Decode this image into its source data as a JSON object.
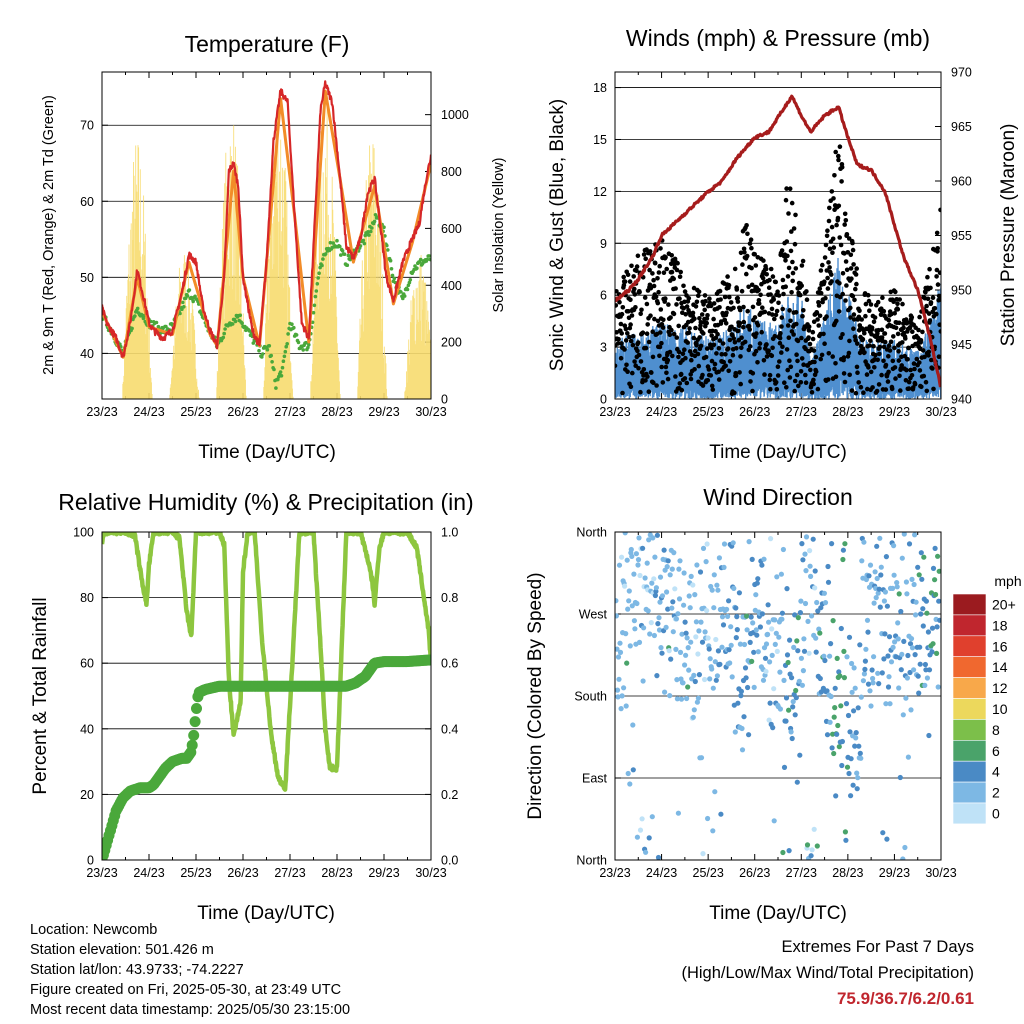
{
  "panels": {
    "temperature": {
      "title": "Temperature (F)",
      "xlabel": "Time (Day/UTC)",
      "ylabel_left": "2m & 9m T (Red, Orange) & 2m Td (Green)",
      "ylabel_right": "Solar Insolation (Yellow)"
    },
    "winds": {
      "title": "Winds (mph) & Pressure (mb)",
      "xlabel": "Time (Day/UTC)",
      "ylabel_left": "Sonic Wind & Gust (Blue, Black)",
      "ylabel_right": "Station Pressure (Maroon)"
    },
    "humidity": {
      "title": "Relative Humidity (%) & Precipitation (in)",
      "xlabel": "Time (Day/UTC)",
      "ylabel_left": "Percent & Total Rainfall"
    },
    "direction": {
      "title": "Wind Direction",
      "xlabel": "Time (Day/UTC)",
      "ylabel_left": "Direction (Colored By Speed)",
      "legend_title": "mph"
    }
  },
  "footer": {
    "location": "Location: Newcomb",
    "elevation": "Station elevation: 501.426 m",
    "latlon": "Station lat/lon: 43.9733; -74.2227",
    "created": "Figure created on Fri, 2025-05-30, at 23:49 UTC",
    "recent": "Most recent data timestamp: 2025/05/30 23:15:00",
    "extremes_title": "Extremes For Past 7 Days",
    "extremes_sub": "(High/Low/Max Wind/Total Precipitation)",
    "extremes_values": "75.9/36.7/6.2/0.61"
  },
  "chart_data": [
    {
      "type": "line",
      "title": "Temperature (F)",
      "xlabel": "Time (Day/UTC)",
      "ylabel": "2m & 9m T (Red, Orange) & 2m Td (Green)",
      "y2label": "Solar Insolation (Yellow)",
      "x_ticks": [
        "23/23",
        "24/23",
        "25/23",
        "26/23",
        "27/23",
        "28/23",
        "29/23",
        "30/23"
      ],
      "xlim": [
        0,
        7
      ],
      "ylim": [
        34,
        77
      ],
      "y_ticks": [
        40,
        50,
        60,
        70
      ],
      "y2lim": [
        0,
        1150
      ],
      "y2_ticks": [
        0,
        200,
        400,
        600,
        800,
        1000
      ],
      "grid": true,
      "colors": {
        "t2m": "#d62728",
        "t9m": "#f28c28",
        "td": "#4aa83b",
        "solar": "#f7dc6f"
      },
      "series": [
        {
          "name": "2m T",
          "color": "#d62728",
          "x": [
            0,
            0.1,
            0.3,
            0.45,
            0.6,
            0.75,
            0.9,
            1.0,
            1.1,
            1.3,
            1.5,
            1.7,
            1.85,
            2.0,
            2.15,
            2.3,
            2.45,
            2.6,
            2.7,
            2.8,
            2.9,
            3.0,
            3.2,
            3.35,
            3.5,
            3.65,
            3.8,
            3.95,
            4.1,
            4.25,
            4.4,
            4.55,
            4.65,
            4.75,
            4.9,
            5.05,
            5.2,
            5.35,
            5.5,
            5.65,
            5.8,
            5.9,
            6.05,
            6.2,
            6.4,
            6.6,
            6.75,
            6.9,
            7.0
          ],
          "y": [
            46,
            44,
            42,
            39.5,
            44,
            51,
            47,
            44,
            43,
            42,
            43,
            48,
            53,
            52,
            46,
            43,
            41,
            50,
            64,
            65,
            62,
            50,
            43,
            41,
            52,
            68,
            74.5,
            73,
            58,
            44,
            42,
            60,
            72,
            75.5,
            73,
            64,
            54,
            52.5,
            55,
            61,
            63,
            58,
            50,
            47,
            52,
            55,
            57,
            63,
            66
          ]
        },
        {
          "name": "9m T",
          "color": "#f28c28",
          "x": [
            0,
            0.3,
            0.45,
            0.75,
            1.0,
            1.5,
            1.85,
            2.3,
            2.45,
            2.8,
            3.0,
            3.35,
            3.8,
            4.1,
            4.4,
            4.75,
            5.05,
            5.35,
            5.8,
            6.2,
            6.6,
            7.0
          ],
          "y": [
            45.5,
            41.5,
            39.5,
            50,
            43.5,
            42.5,
            52,
            42.5,
            41,
            64,
            50,
            41,
            73.5,
            58,
            41.5,
            74.5,
            63.5,
            52,
            62,
            46.5,
            54.5,
            65
          ]
        },
        {
          "name": "2m Td",
          "color": "#4aa83b",
          "x": [
            0,
            0.2,
            0.45,
            0.75,
            1.0,
            1.3,
            1.5,
            1.7,
            1.85,
            2.0,
            2.2,
            2.45,
            2.7,
            2.9,
            3.0,
            3.2,
            3.4,
            3.55,
            3.7,
            3.85,
            4.0,
            4.2,
            4.4,
            4.6,
            4.8,
            5.0,
            5.2,
            5.4,
            5.6,
            5.85,
            6.0,
            6.2,
            6.4,
            6.6,
            6.8,
            7.0
          ],
          "y": [
            45,
            43,
            40,
            46,
            44,
            43,
            43.5,
            46,
            48,
            47,
            44,
            41,
            44,
            45,
            44,
            42,
            40,
            41,
            36,
            38,
            44,
            41,
            41,
            50,
            54,
            54.5,
            52,
            53.5,
            55,
            58,
            56,
            50,
            47,
            51,
            52,
            52.5
          ]
        },
        {
          "name": "Solar Insolation",
          "color": "#f7dc6f",
          "axis": "right",
          "peaks_x": [
            0.75,
            1.75,
            2.75,
            3.75,
            4.75,
            5.75,
            6.75
          ],
          "peaks_y": [
            950,
            550,
            1050,
            1150,
            1100,
            980,
            550
          ]
        }
      ]
    },
    {
      "type": "scatter",
      "title": "Winds (mph) & Pressure (mb)",
      "xlabel": "Time (Day/UTC)",
      "ylabel": "Sonic Wind & Gust (Blue, Black)",
      "y2label": "Station Pressure (Maroon)",
      "x_ticks": [
        "23/23",
        "24/23",
        "25/23",
        "26/23",
        "27/23",
        "28/23",
        "29/23",
        "30/23"
      ],
      "xlim": [
        0,
        7
      ],
      "ylim": [
        0,
        18.9
      ],
      "y_ticks": [
        0,
        3,
        6,
        9,
        12,
        15,
        18
      ],
      "y2lim": [
        940,
        970
      ],
      "y2_ticks": [
        940,
        945,
        950,
        955,
        960,
        965,
        970
      ],
      "grid": true,
      "series": [
        {
          "name": "Station Pressure",
          "color": "#a61c1c",
          "axis": "right",
          "x": [
            0,
            0.3,
            0.5,
            0.8,
            1.0,
            1.5,
            2.0,
            2.3,
            2.6,
            3.0,
            3.3,
            3.6,
            3.8,
            4.0,
            4.2,
            4.5,
            4.8,
            5.0,
            5.2,
            5.5,
            5.8,
            6.0,
            6.2,
            6.5,
            6.8,
            7.0
          ],
          "y": [
            949,
            950,
            951,
            953,
            955,
            957,
            959,
            960,
            962,
            964,
            964.5,
            966.5,
            967.8,
            966,
            964.5,
            966,
            966.8,
            964,
            961.5,
            961,
            959,
            956,
            953,
            950,
            945,
            941
          ]
        },
        {
          "name": "Sonic Wind",
          "color": "#4f8fcf",
          "envelope_x": [
            0,
            0.5,
            1.0,
            1.5,
            2.0,
            2.5,
            2.8,
            3.0,
            3.5,
            3.7,
            4.0,
            4.2,
            4.5,
            4.8,
            5.0,
            5.3,
            5.6,
            6.0,
            6.5,
            6.8,
            7.0
          ],
          "envelope_y": [
            2.5,
            2.8,
            3.2,
            3.0,
            2.6,
            3.0,
            4.0,
            3.5,
            3.0,
            5.0,
            4.5,
            1.5,
            3.5,
            6.0,
            4.5,
            2.5,
            2.5,
            2.5,
            2.0,
            3.5,
            5.0
          ]
        },
        {
          "name": "Gust",
          "color": "#000000",
          "envelope_x": [
            0,
            0.5,
            1.0,
            1.5,
            2.0,
            2.5,
            2.8,
            3.0,
            3.5,
            3.7,
            4.0,
            4.2,
            4.5,
            4.8,
            5.0,
            5.3,
            5.6,
            6.0,
            6.5,
            6.8,
            7.0
          ],
          "envelope_y": [
            6,
            8,
            9,
            7,
            5.5,
            7,
            10,
            8,
            7,
            12,
            10,
            3,
            9,
            15,
            10,
            6,
            5.5,
            6,
            4,
            8,
            11
          ]
        }
      ]
    },
    {
      "type": "line",
      "title": "Relative Humidity (%) & Precipitation (in)",
      "xlabel": "Time (Day/UTC)",
      "ylabel": "Percent & Total Rainfall",
      "x_ticks": [
        "23/23",
        "24/23",
        "25/23",
        "26/23",
        "27/23",
        "28/23",
        "29/23",
        "30/23"
      ],
      "xlim": [
        0,
        7
      ],
      "ylim": [
        0,
        100
      ],
      "y_ticks": [
        0,
        20,
        40,
        60,
        80,
        100
      ],
      "y2lim": [
        0,
        1
      ],
      "y2_ticks": [
        0.0,
        0.2,
        0.4,
        0.6,
        0.8,
        1.0
      ],
      "grid": true,
      "series": [
        {
          "name": "Relative Humidity",
          "color": "#8dc63f",
          "x": [
            0,
            0.05,
            0.5,
            0.7,
            0.85,
            0.95,
            1.0,
            1.1,
            1.5,
            1.65,
            1.8,
            1.9,
            2.0,
            2.5,
            2.6,
            2.7,
            2.8,
            2.95,
            3.0,
            3.1,
            3.25,
            3.4,
            3.6,
            3.75,
            3.9,
            4.05,
            4.2,
            4.5,
            4.65,
            4.75,
            4.85,
            5.0,
            5.1,
            5.2,
            5.5,
            5.65,
            5.75,
            5.8,
            5.9,
            6.0,
            6.1,
            6.3,
            6.5,
            6.7,
            6.8,
            6.95,
            7.0
          ],
          "y": [
            97,
            100,
            100,
            99,
            85,
            78,
            90,
            100,
            100,
            98,
            76,
            68,
            100,
            100,
            96,
            55,
            38,
            48,
            88,
            100,
            100,
            68,
            38,
            25,
            22,
            60,
            100,
            100,
            65,
            40,
            28,
            28,
            65,
            100,
            100,
            92,
            85,
            78,
            95,
            100,
            100,
            100,
            100,
            95,
            85,
            70,
            60
          ]
        },
        {
          "name": "Total Precipitation",
          "color": "#4aa83b",
          "axis": "right",
          "x": [
            0,
            0.1,
            0.2,
            0.3,
            0.45,
            0.6,
            0.8,
            1.0,
            1.1,
            1.2,
            1.35,
            1.5,
            1.7,
            1.8,
            1.9,
            1.95,
            2.0,
            2.05,
            2.2,
            2.5,
            3.0,
            3.5,
            3.6,
            4.0,
            4.5,
            5.0,
            5.2,
            5.4,
            5.5,
            5.6,
            5.7,
            5.8,
            6.0,
            6.5,
            7.0
          ],
          "y": [
            0,
            0.05,
            0.1,
            0.15,
            0.19,
            0.21,
            0.22,
            0.22,
            0.23,
            0.25,
            0.28,
            0.3,
            0.31,
            0.31,
            0.33,
            0.38,
            0.45,
            0.51,
            0.52,
            0.53,
            0.53,
            0.53,
            0.53,
            0.53,
            0.53,
            0.53,
            0.53,
            0.54,
            0.55,
            0.56,
            0.58,
            0.6,
            0.605,
            0.605,
            0.61
          ]
        }
      ]
    },
    {
      "type": "scatter",
      "title": "Wind Direction",
      "xlabel": "Time (Day/UTC)",
      "ylabel": "Direction (Colored By Speed)",
      "x_ticks": [
        "23/23",
        "24/23",
        "25/23",
        "26/23",
        "27/23",
        "28/23",
        "29/23",
        "30/23"
      ],
      "xlim": [
        0,
        7
      ],
      "y_categories": [
        "North",
        "East",
        "South",
        "West",
        "North"
      ],
      "ylim": [
        0,
        360
      ],
      "grid": true,
      "legend": {
        "title": "mph",
        "placement": "right",
        "labels": [
          "20+",
          "18",
          "16",
          "14",
          "12",
          "10",
          "8",
          "6",
          "4",
          "2",
          "0"
        ],
        "colors": [
          "#9b1b1f",
          "#c0262e",
          "#e0402d",
          "#f0682f",
          "#f8a84a",
          "#ecd85c",
          "#7cbf4a",
          "#4aa36a",
          "#4a8ac5",
          "#7db8e4",
          "#bfe2f7"
        ]
      },
      "clusters": [
        {
          "x": 0.2,
          "dir": 250,
          "speed": 2
        },
        {
          "x": 0.4,
          "dir": 310,
          "speed": 2
        },
        {
          "x": 0.7,
          "dir": 330,
          "speed": 2
        },
        {
          "x": 1.0,
          "dir": 280,
          "speed": 3
        },
        {
          "x": 1.3,
          "dir": 260,
          "speed": 2
        },
        {
          "x": 1.6,
          "dir": 240,
          "speed": 2
        },
        {
          "x": 2.0,
          "dir": 270,
          "speed": 2
        },
        {
          "x": 2.4,
          "dir": 290,
          "speed": 3
        },
        {
          "x": 2.7,
          "dir": 200,
          "speed": 3
        },
        {
          "x": 3.0,
          "dir": 270,
          "speed": 3
        },
        {
          "x": 3.4,
          "dir": 230,
          "speed": 2
        },
        {
          "x": 3.8,
          "dir": 200,
          "speed": 4
        },
        {
          "x": 4.2,
          "dir": 300,
          "speed": 2
        },
        {
          "x": 4.5,
          "dir": 220,
          "speed": 3
        },
        {
          "x": 4.8,
          "dir": 180,
          "speed": 5
        },
        {
          "x": 5.1,
          "dir": 160,
          "speed": 3
        },
        {
          "x": 5.5,
          "dir": 270,
          "speed": 3
        },
        {
          "x": 5.9,
          "dir": 250,
          "speed": 3
        },
        {
          "x": 6.3,
          "dir": 280,
          "speed": 3
        },
        {
          "x": 6.7,
          "dir": 260,
          "speed": 4
        }
      ]
    }
  ]
}
